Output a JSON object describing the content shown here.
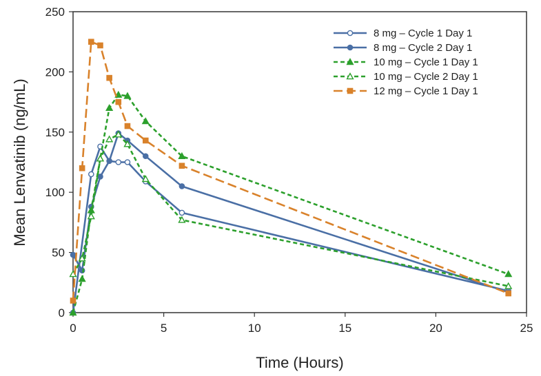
{
  "chart_data": {
    "type": "line",
    "xlabel": "Time (Hours)",
    "ylabel": "Mean Lenvatinib (ng/mL)",
    "xlim": [
      0,
      25
    ],
    "ylim": [
      0,
      250
    ],
    "xticks": [
      0,
      5,
      10,
      15,
      20,
      25
    ],
    "yticks": [
      0,
      50,
      100,
      150,
      200,
      250
    ],
    "grid": false,
    "legend_position": "top-right",
    "series": [
      {
        "name": "8 mg – Cycle 1 Day 1",
        "color": "#4a6fa5",
        "line_style": "solid",
        "marker": "open-circle",
        "x": [
          0,
          1,
          1.5,
          2,
          2.5,
          3,
          4,
          6,
          24
        ],
        "y": [
          0,
          115,
          138,
          126,
          125,
          125,
          109,
          83,
          18
        ]
      },
      {
        "name": "8 mg – Cycle 2 Day 1",
        "color": "#4a6fa5",
        "line_style": "solid",
        "marker": "filled-circle",
        "x": [
          0,
          0.5,
          1,
          1.5,
          2,
          2.5,
          3,
          4,
          6,
          24
        ],
        "y": [
          48,
          35,
          88,
          113,
          126,
          149,
          143,
          130,
          105,
          17
        ]
      },
      {
        "name": "10 mg – Cycle 1 Day 1",
        "color": "#2ca02c",
        "line_style": "short-dash",
        "marker": "filled-triangle",
        "x": [
          0,
          0.5,
          1,
          1.5,
          2,
          2.5,
          3,
          4,
          6,
          24
        ],
        "y": [
          0,
          28,
          85,
          128,
          170,
          181,
          180,
          159,
          130,
          32
        ]
      },
      {
        "name": "10 mg – Cycle 2 Day 1",
        "color": "#2ca02c",
        "line_style": "short-dash",
        "marker": "open-triangle",
        "x": [
          0,
          0.5,
          1,
          1.5,
          2,
          2.5,
          3,
          4,
          6,
          24
        ],
        "y": [
          32,
          45,
          80,
          128,
          144,
          148,
          140,
          111,
          77,
          22
        ]
      },
      {
        "name": "12 mg – Cycle 1 Day 1",
        "color": "#d9822b",
        "line_style": "long-dash",
        "marker": "filled-square",
        "x": [
          0,
          0.5,
          1,
          1.5,
          2,
          2.5,
          3,
          4,
          6,
          24
        ],
        "y": [
          10,
          120,
          225,
          222,
          195,
          175,
          155,
          143,
          122,
          16
        ]
      }
    ]
  }
}
